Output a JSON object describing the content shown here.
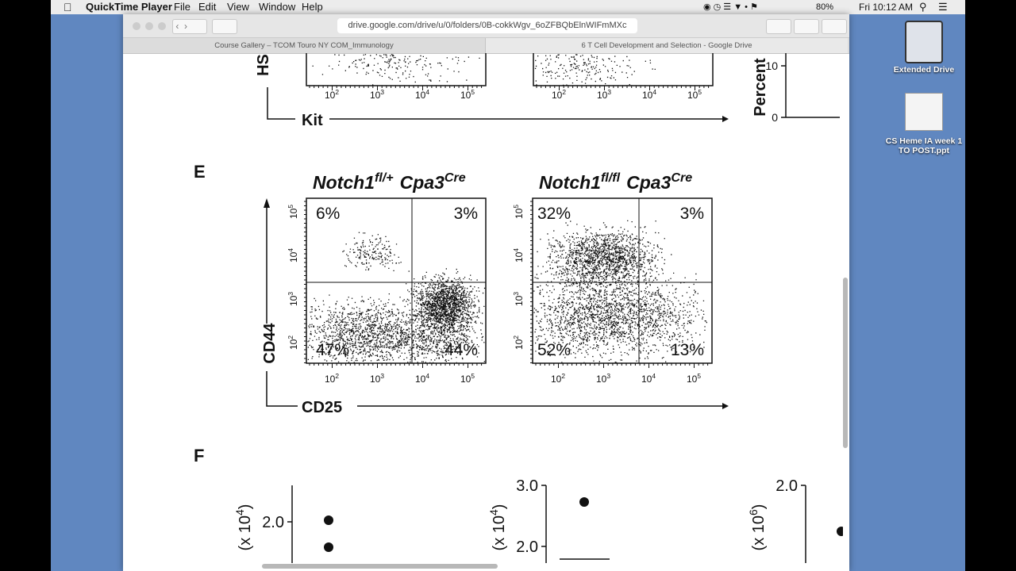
{
  "menu_bar": {
    "app_name": "QuickTime Player",
    "menus": [
      "File",
      "Edit",
      "View",
      "Window",
      "Help"
    ],
    "battery": "80%",
    "clock": "Fri 10:12 AM"
  },
  "browser": {
    "url": "drive.google.com/drive/u/0/folders/0B-cokkWgv_6oZFBQbElnWIFmMXc",
    "tabs": [
      "Course Gallery – TCOM Touro NY COM_Immunology",
      "6 T Cell Development and Selection - Google Drive"
    ]
  },
  "desktop_icons": [
    "Extended Drive",
    "CS Heme IA week 1 TO POST.ppt"
  ],
  "figure": {
    "log_base": "10",
    "log_ticks": [
      "2",
      "3",
      "4",
      "5"
    ],
    "panel_d": {
      "y_label": "HS",
      "x_label": "Kit",
      "percent_label": "Percent",
      "percent_ticks": [
        "10",
        "0"
      ]
    },
    "panel_e": {
      "label": "E",
      "y_label": "CD44",
      "x_label": "CD25",
      "plots": [
        {
          "gene": "Notch1",
          "genotype": "fl/+",
          "driver": "Cpa3",
          "driver_tag": "Cre",
          "quadrants": [
            "6%",
            "3%",
            "47%",
            "44%"
          ]
        },
        {
          "gene": "Notch1",
          "genotype": "fl/fl",
          "driver": "Cpa3",
          "driver_tag": "Cre",
          "quadrants": [
            "32%",
            "3%",
            "52%",
            "13%"
          ]
        }
      ]
    },
    "panel_f": {
      "label": "F",
      "plots": [
        {
          "y_label": "(x 10",
          "y_exp": "4",
          "y_close": ")",
          "ticks": [
            "2.0"
          ]
        },
        {
          "y_label": "(x 10",
          "y_exp": "4",
          "y_close": ")",
          "ticks": [
            "3.0",
            "2.0"
          ]
        },
        {
          "y_label": "(x 10",
          "y_exp": "6",
          "y_close": ")",
          "ticks": [
            "2.0"
          ]
        }
      ]
    }
  }
}
